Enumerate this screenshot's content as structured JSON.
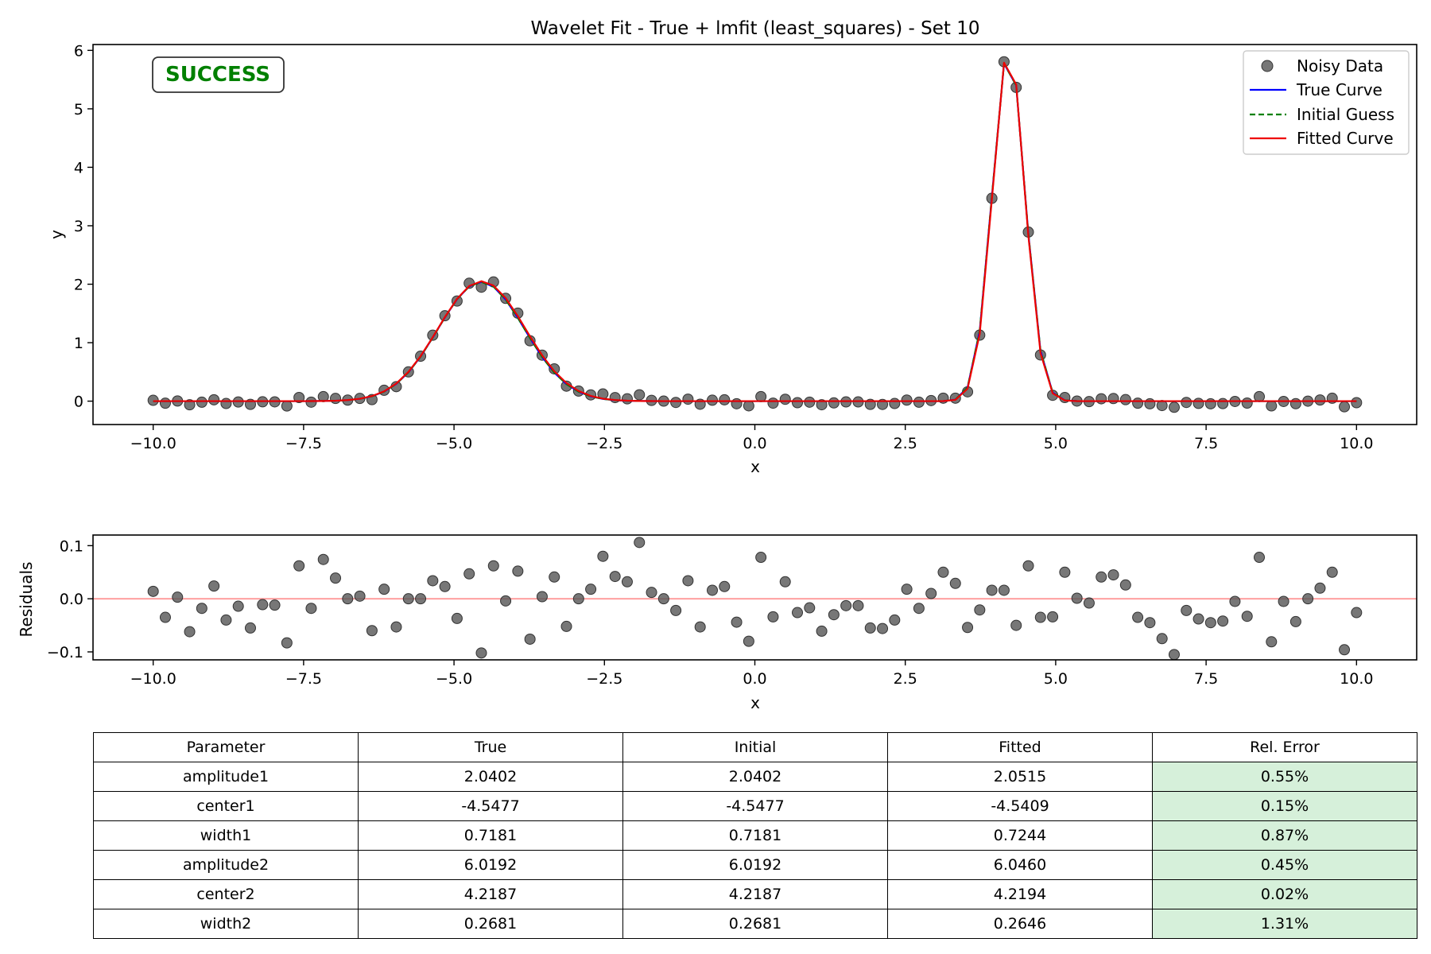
{
  "chart_data": [
    {
      "type": "scatter",
      "title": "Wavelet Fit - True + lmfit (least_squares) - Set 10",
      "xlabel": "x",
      "ylabel": "y",
      "xlim": [
        -11,
        11
      ],
      "ylim": [
        -0.4,
        6.1
      ],
      "xticks": [
        -10,
        -7.5,
        -5,
        -2.5,
        0,
        2.5,
        5,
        7.5,
        10
      ],
      "xtick_labels": [
        "−10.0",
        "−7.5",
        "−5.0",
        "−2.5",
        "0.0",
        "2.5",
        "5.0",
        "7.5",
        "10.0"
      ],
      "yticks": [
        0,
        1,
        2,
        3,
        4,
        5,
        6
      ],
      "ytick_labels": [
        "0",
        "1",
        "2",
        "3",
        "4",
        "5",
        "6"
      ],
      "grid": false,
      "legend_position": "top-right",
      "badge": "SUCCESS",
      "badge_color": "#008000",
      "model": {
        "x_start": -10,
        "x_end": 10,
        "true": {
          "amplitude1": 2.0402,
          "center1": -4.5477,
          "width1": 0.7181,
          "amplitude2": 6.0192,
          "center2": 4.2187,
          "width2": 0.2681
        },
        "initial": {
          "amplitude1": 2.0402,
          "center1": -4.5477,
          "width1": 0.7181,
          "amplitude2": 6.0192,
          "center2": 4.2187,
          "width2": 0.2681
        },
        "fitted": {
          "amplitude1": 2.0515,
          "center1": -4.5409,
          "width1": 0.7244,
          "amplitude2": 6.046,
          "center2": 4.2194,
          "width2": 0.2646
        }
      },
      "series": [
        {
          "name": "Noisy Data",
          "kind": "points",
          "color": "#555555"
        },
        {
          "name": "True Curve",
          "kind": "line",
          "color": "#0000ff",
          "style": "solid",
          "source": "true"
        },
        {
          "name": "Initial Guess",
          "kind": "line",
          "color": "#008000",
          "style": "dashed",
          "source": "initial"
        },
        {
          "name": "Fitted Curve",
          "kind": "line",
          "color": "#ee0000",
          "style": "solid",
          "source": "fitted"
        }
      ]
    },
    {
      "type": "scatter",
      "title": "",
      "xlabel": "x",
      "ylabel": "Residuals",
      "xlim": [
        -11,
        11
      ],
      "ylim": [
        -0.115,
        0.12
      ],
      "xticks": [
        -10,
        -7.5,
        -5,
        -2.5,
        0,
        2.5,
        5,
        7.5,
        10
      ],
      "xtick_labels": [
        "−10.0",
        "−7.5",
        "−5.0",
        "−2.5",
        "0.0",
        "2.5",
        "5.0",
        "7.5",
        "10.0"
      ],
      "yticks": [
        -0.1,
        0,
        0.1
      ],
      "ytick_labels": [
        "−0.1",
        "0.0",
        "0.1"
      ],
      "reference_line": {
        "y": 0,
        "color": "#ff9999"
      },
      "point_color": "#555555",
      "values": [
        0.014,
        -0.035,
        0.003,
        -0.062,
        -0.018,
        0.024,
        -0.04,
        -0.014,
        -0.055,
        -0.011,
        -0.012,
        -0.083,
        0.062,
        -0.018,
        0.074,
        0.039,
        0.0,
        0.005,
        -0.06,
        0.018,
        -0.053,
        0.0,
        0.0,
        0.034,
        0.023,
        -0.037,
        0.047,
        -0.102,
        0.062,
        -0.004,
        0.052,
        -0.076,
        0.004,
        0.041,
        -0.052,
        0.0,
        0.018,
        0.08,
        0.042,
        0.032,
        0.106,
        0.012,
        0.0,
        -0.022,
        0.034,
        -0.053,
        0.016,
        0.023,
        -0.044,
        -0.08,
        0.078,
        -0.034,
        0.032,
        -0.026,
        -0.017,
        -0.061,
        -0.03,
        -0.013,
        -0.013,
        -0.055,
        -0.056,
        -0.04,
        0.018,
        -0.018,
        0.01,
        0.05,
        0.029,
        -0.054,
        -0.021,
        0.016,
        0.016,
        -0.05,
        0.062,
        -0.035,
        -0.034,
        0.05,
        0.001,
        -0.008,
        0.041,
        0.045,
        0.026,
        -0.035,
        -0.045,
        -0.075,
        -0.105,
        -0.022,
        -0.038,
        -0.045,
        -0.042,
        -0.005,
        -0.033,
        0.078,
        -0.081,
        -0.005,
        -0.043,
        0.0,
        0.02,
        0.05,
        -0.096,
        -0.026
      ]
    }
  ],
  "table": {
    "headers": [
      "Parameter",
      "True",
      "Initial",
      "Fitted",
      "Rel. Error"
    ],
    "rows": [
      [
        "amplitude1",
        "2.0402",
        "2.0402",
        "2.0515",
        "0.55%"
      ],
      [
        "center1",
        "-4.5477",
        "-4.5477",
        "-4.5409",
        "0.15%"
      ],
      [
        "width1",
        "0.7181",
        "0.7181",
        "0.7244",
        "0.87%"
      ],
      [
        "amplitude2",
        "6.0192",
        "6.0192",
        "6.0460",
        "0.45%"
      ],
      [
        "center2",
        "4.2187",
        "4.2187",
        "4.2194",
        "0.02%"
      ],
      [
        "width2",
        "0.2681",
        "0.2681",
        "0.2646",
        "1.31%"
      ]
    ],
    "error_cell_color": "#d6f0da"
  }
}
